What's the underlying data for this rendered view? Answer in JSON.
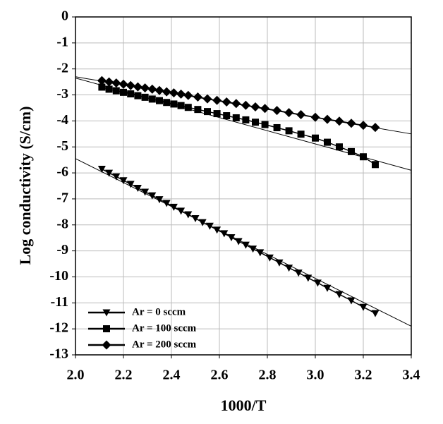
{
  "chart_data": {
    "type": "scatter",
    "x_label": "1000/T",
    "y_label": "Log conductivity (S/cm)",
    "xlim": [
      2.0,
      3.4
    ],
    "ylim": [
      -13,
      0
    ],
    "xticks": [
      {
        "value": 2,
        "label": "2.0"
      },
      2.2,
      2.4,
      2.6,
      2.8,
      {
        "value": 3,
        "label": "3.0"
      },
      3.2,
      3.4
    ],
    "yticks": [
      0,
      -1,
      -2,
      -3,
      -4,
      -5,
      -6,
      -7,
      -8,
      -9,
      -10,
      -11,
      -12,
      -13
    ],
    "grid": true,
    "legend": "lower-left",
    "series": [
      {
        "name": "Ar = 0 sccm",
        "marker": "triangle-down",
        "color": "#000000",
        "x": [
          2.11,
          2.14,
          2.17,
          2.2,
          2.23,
          2.26,
          2.29,
          2.32,
          2.35,
          2.38,
          2.41,
          2.44,
          2.47,
          2.5,
          2.53,
          2.56,
          2.59,
          2.62,
          2.65,
          2.68,
          2.71,
          2.74,
          2.77,
          2.81,
          2.85,
          2.89,
          2.93,
          2.97,
          3.01,
          3.05,
          3.1,
          3.15,
          3.2,
          3.25
        ],
        "values": [
          -5.85,
          -6.0,
          -6.14,
          -6.29,
          -6.43,
          -6.58,
          -6.73,
          -6.87,
          -7.02,
          -7.16,
          -7.31,
          -7.46,
          -7.6,
          -7.75,
          -7.9,
          -8.04,
          -8.19,
          -8.33,
          -8.48,
          -8.63,
          -8.77,
          -8.92,
          -9.06,
          -9.26,
          -9.45,
          -9.65,
          -9.84,
          -10.04,
          -10.23,
          -10.43,
          -10.67,
          -10.91,
          -11.16,
          -11.4
        ]
      },
      {
        "name": "Ar = 100 sccm",
        "marker": "square",
        "color": "#000000",
        "x": [
          2.11,
          2.14,
          2.17,
          2.2,
          2.23,
          2.26,
          2.29,
          2.32,
          2.35,
          2.38,
          2.41,
          2.44,
          2.47,
          2.51,
          2.55,
          2.59,
          2.63,
          2.67,
          2.71,
          2.75,
          2.79,
          2.84,
          2.89,
          2.94,
          3.0,
          3.05,
          3.1,
          3.15,
          3.2,
          3.25
        ],
        "values": [
          -2.7,
          -2.78,
          -2.84,
          -2.9,
          -2.96,
          -3.03,
          -3.09,
          -3.16,
          -3.22,
          -3.29,
          -3.35,
          -3.41,
          -3.48,
          -3.56,
          -3.64,
          -3.72,
          -3.8,
          -3.88,
          -3.96,
          -4.05,
          -4.14,
          -4.26,
          -4.38,
          -4.51,
          -4.66,
          -4.82,
          -5.0,
          -5.18,
          -5.38,
          -5.68
        ]
      },
      {
        "name": "Ar = 200 sccm",
        "marker": "diamond",
        "color": "#000000",
        "x": [
          2.11,
          2.14,
          2.17,
          2.2,
          2.23,
          2.26,
          2.29,
          2.32,
          2.35,
          2.38,
          2.41,
          2.44,
          2.47,
          2.51,
          2.55,
          2.59,
          2.63,
          2.67,
          2.71,
          2.75,
          2.79,
          2.84,
          2.89,
          2.94,
          3.0,
          3.05,
          3.1,
          3.15,
          3.2,
          3.25
        ],
        "values": [
          -2.45,
          -2.5,
          -2.54,
          -2.59,
          -2.64,
          -2.69,
          -2.73,
          -2.78,
          -2.83,
          -2.88,
          -2.92,
          -2.97,
          -3.02,
          -3.08,
          -3.15,
          -3.21,
          -3.27,
          -3.33,
          -3.4,
          -3.46,
          -3.52,
          -3.6,
          -3.68,
          -3.76,
          -3.86,
          -3.94,
          -4.01,
          -4.09,
          -4.17,
          -4.25
        ]
      }
    ],
    "fit_lines": [
      {
        "x": [
          2.0,
          3.4
        ],
        "values": [
          -5.45,
          -11.9
        ]
      },
      {
        "x": [
          2.0,
          3.4
        ],
        "values": [
          -2.35,
          -5.9
        ]
      },
      {
        "x": [
          2.0,
          3.4
        ],
        "values": [
          -2.3,
          -4.5
        ]
      }
    ]
  }
}
